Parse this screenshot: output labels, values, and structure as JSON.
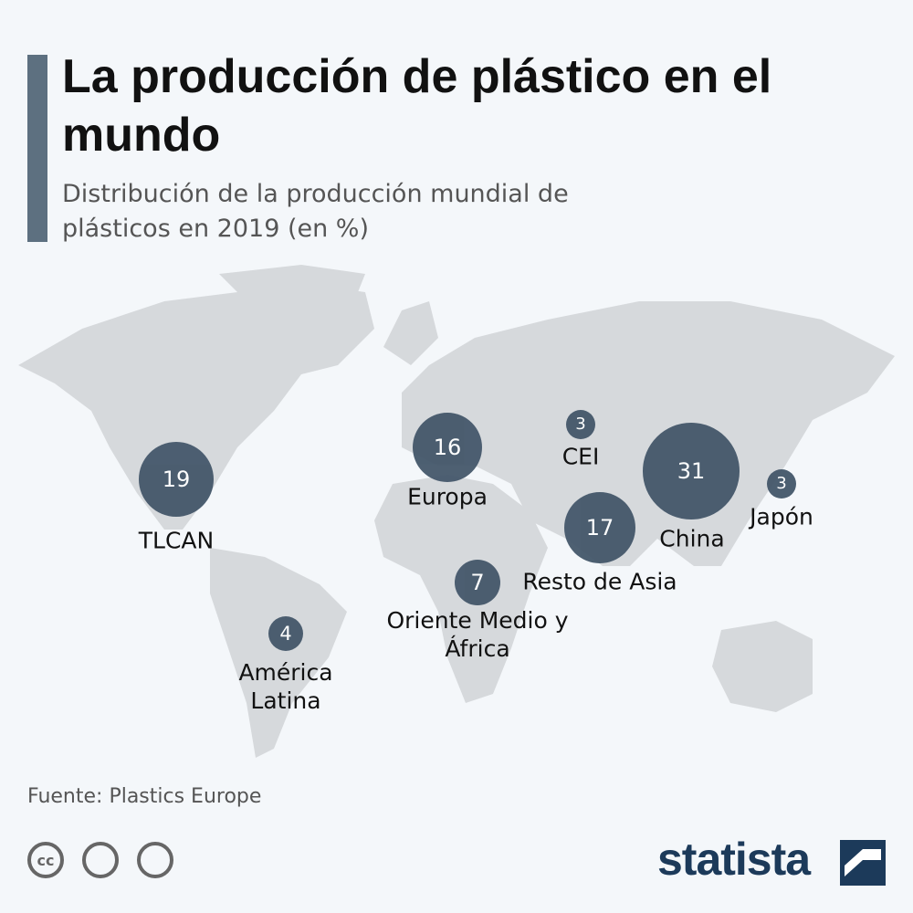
{
  "header": {
    "title": "La producción de plástico en el mundo",
    "subtitle": "Distribución de la producción mundial de plásticos en 2019 (en %)"
  },
  "regions": [
    {
      "name": "TLCAN",
      "value": 19
    },
    {
      "name": "Europa",
      "value": 16
    },
    {
      "name": "CEI",
      "value": 3
    },
    {
      "name": "China",
      "value": 31
    },
    {
      "name": "Japón",
      "value": 3
    },
    {
      "name": "Resto de Asia",
      "value": 17
    },
    {
      "name": "Oriente Medio y África",
      "value": 7
    },
    {
      "name": "América Latina",
      "value": 4
    }
  ],
  "footer": {
    "source": "Fuente: Plastics Europe",
    "cc_icon": "cc",
    "brand": "statista"
  }
}
